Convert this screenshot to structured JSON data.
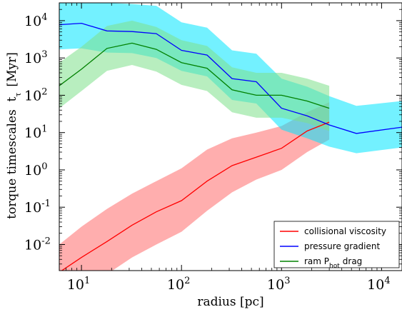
{
  "chart_data": {
    "type": "line",
    "xlabel": "radius  [pc]",
    "ylabel": "torque timescales  t",
    "ylabel_subscript": "τ",
    "ylabel_unit": "[Myr]",
    "x_scale": "log",
    "y_scale": "log",
    "xlim": [
      6,
      16000
    ],
    "ylim": [
      0.002,
      30000
    ],
    "x_ticks": [
      {
        "value": 10,
        "base": "10",
        "exp": "1"
      },
      {
        "value": 100,
        "base": "10",
        "exp": "2"
      },
      {
        "value": 1000,
        "base": "10",
        "exp": "3"
      },
      {
        "value": 10000,
        "base": "10",
        "exp": "4"
      }
    ],
    "y_ticks": [
      {
        "value": 0.01,
        "base": "10",
        "exp": "-2"
      },
      {
        "value": 0.1,
        "base": "10",
        "exp": "-1"
      },
      {
        "value": 1,
        "base": "10",
        "exp": "0"
      },
      {
        "value": 10,
        "base": "10",
        "exp": "1"
      },
      {
        "value": 100,
        "base": "10",
        "exp": "2"
      },
      {
        "value": 1000,
        "base": "10",
        "exp": "3"
      },
      {
        "value": 10000,
        "base": "10",
        "exp": "4"
      }
    ],
    "grid": false,
    "legend_position": "bottom-right",
    "series": [
      {
        "name": "collisional viscosity",
        "color": "#ff0000",
        "band_color": "#ff6b6b",
        "x": [
          6,
          10,
          18,
          32,
          56,
          100,
          180,
          320,
          560,
          1000,
          1800,
          3000
        ],
        "y": [
          0.0018,
          0.0045,
          0.012,
          0.033,
          0.075,
          0.15,
          0.5,
          1.3,
          2.2,
          3.8,
          11,
          19
        ],
        "band_low": [
          0.0003,
          0.0006,
          0.0016,
          0.0045,
          0.01,
          0.022,
          0.08,
          0.25,
          0.55,
          1.0,
          3.0,
          6.5
        ],
        "band_high": [
          0.01,
          0.03,
          0.09,
          0.23,
          0.5,
          1.1,
          3.5,
          7,
          10,
          15,
          35,
          65
        ]
      },
      {
        "name": "pressure gradient",
        "color": "#0000ff",
        "band_color": "#00e5ff",
        "x": [
          6,
          10,
          18,
          32,
          56,
          100,
          180,
          320,
          560,
          1000,
          1800,
          3000,
          5600,
          16000
        ],
        "y": [
          7800,
          8500,
          5300,
          5100,
          4500,
          1600,
          1200,
          280,
          230,
          45,
          28,
          16,
          9.5,
          14
        ],
        "band_low": [
          1700,
          1800,
          1400,
          1350,
          1000,
          450,
          320,
          75,
          60,
          12,
          7,
          4.2,
          2.8,
          4
        ],
        "band_high": [
          30000,
          30000,
          30000,
          28000,
          25000,
          9000,
          6500,
          1600,
          1300,
          280,
          170,
          95,
          52,
          70
        ]
      },
      {
        "name": "ram P",
        "name_subscript": "hot",
        "name_suffix": "drag",
        "color": "#008000",
        "band_color": "#7ee08a",
        "x": [
          6,
          10,
          18,
          32,
          56,
          100,
          180,
          320,
          560,
          1000,
          1800,
          3000
        ],
        "y": [
          180,
          500,
          1800,
          2500,
          1700,
          750,
          530,
          140,
          100,
          100,
          70,
          45
        ],
        "band_low": [
          45,
          130,
          450,
          650,
          430,
          190,
          130,
          35,
          25,
          25,
          18,
          11
        ],
        "band_high": [
          750,
          2000,
          7200,
          10000,
          6800,
          3000,
          2100,
          560,
          400,
          400,
          280,
          180
        ]
      }
    ]
  }
}
